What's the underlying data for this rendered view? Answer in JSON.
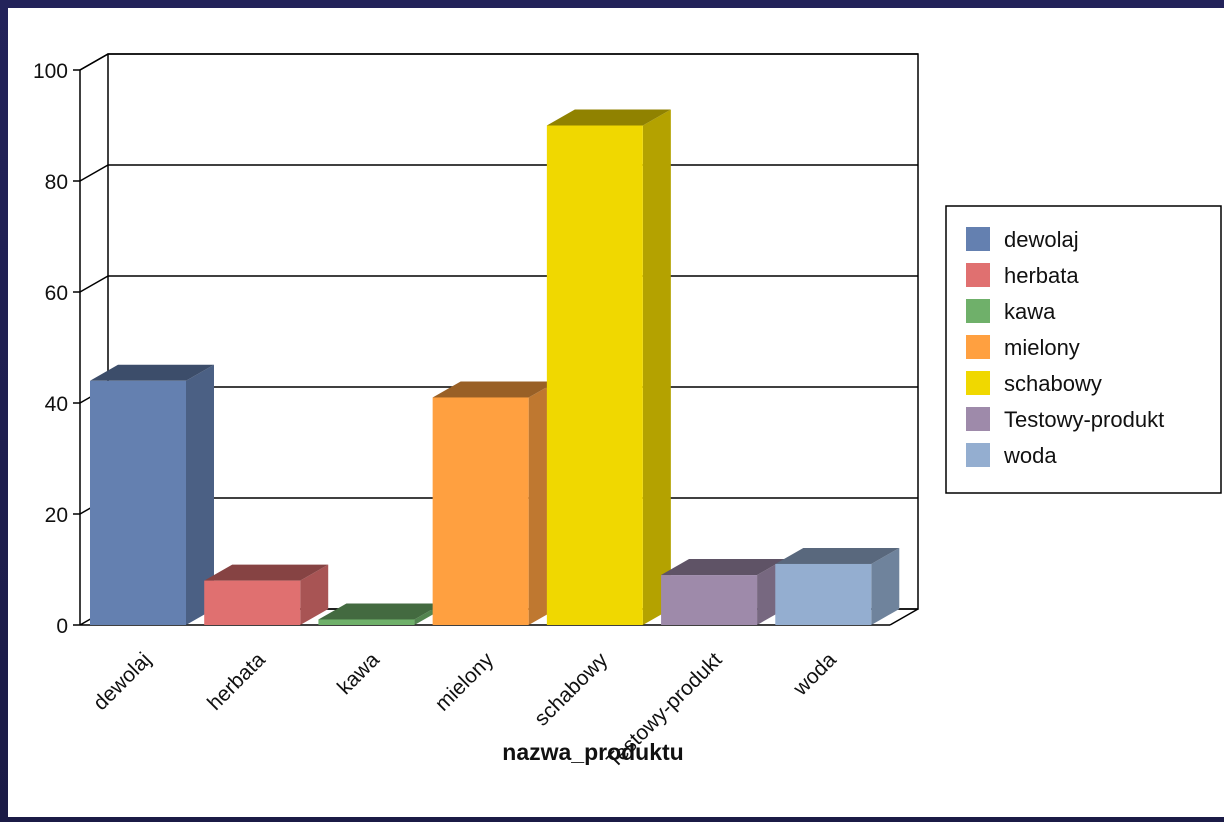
{
  "chart_data": {
    "type": "bar",
    "categories": [
      "dewolaj",
      "herbata",
      "kawa",
      "mielony",
      "schabowy",
      "Testowy-produkt",
      "woda"
    ],
    "values": [
      44,
      8,
      1,
      41,
      90,
      9,
      11
    ],
    "colors": [
      "#6480b0",
      "#e07070",
      "#6fb06a",
      "#ffa040",
      "#f0d800",
      "#9e8aaa",
      "#94aed0"
    ],
    "title": "",
    "xlabel": "nazwa_produktu",
    "ylabel": "",
    "ylim": [
      0,
      100
    ],
    "yticks": [
      "0",
      "20",
      "40",
      "60",
      "80",
      "100"
    ],
    "grid": true,
    "legend": {
      "position": "right",
      "entries": [
        "dewolaj",
        "herbata",
        "kawa",
        "mielony",
        "schabowy",
        "Testowy-produkt",
        "woda"
      ]
    }
  }
}
